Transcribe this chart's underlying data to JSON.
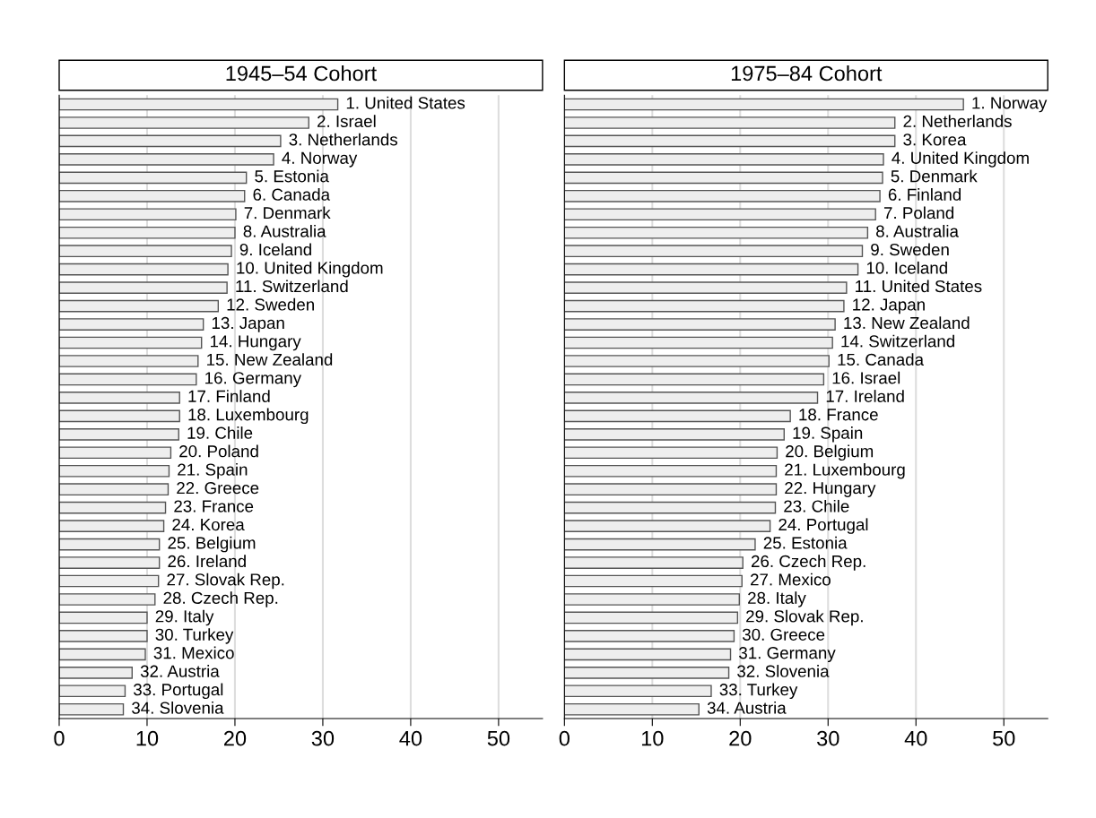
{
  "chart_data": [
    {
      "type": "bar",
      "orientation": "horizontal",
      "title": "1945–54 Cohort",
      "color": "#eeeeee",
      "xlim": [
        0,
        55
      ],
      "xticks": [
        0,
        10,
        20,
        30,
        40,
        50
      ],
      "grid": "x",
      "tick_labels": "x",
      "categories": [
        "1. United States",
        "2. Israel",
        "3. Netherlands",
        "4. Norway",
        "5. Estonia",
        "6. Canada",
        "7. Denmark",
        "8. Australia",
        "9. Iceland",
        "10. United Kingdom",
        "11. Switzerland",
        "12. Sweden",
        "13. Japan",
        "14. Hungary",
        "15. New Zealand",
        "16. Germany",
        "17. Finland",
        "18. Luxembourg",
        "19. Chile",
        "20. Poland",
        "21. Spain",
        "22. Greece",
        "23. France",
        "24. Korea",
        "25. Belgium",
        "26. Ireland",
        "27. Slovak Rep.",
        "28. Czech Rep.",
        "29. Italy",
        "30. Turkey",
        "31. Mexico",
        "32. Austria",
        "33. Portugal",
        "34. Slovenia"
      ],
      "values": [
        31.7,
        28.4,
        25.2,
        24.4,
        21.3,
        21.1,
        20.1,
        20.0,
        19.6,
        19.2,
        19.1,
        18.1,
        16.4,
        16.2,
        15.8,
        15.6,
        13.7,
        13.7,
        13.6,
        12.7,
        12.5,
        12.4,
        12.1,
        11.9,
        11.4,
        11.4,
        11.3,
        10.9,
        10.0,
        10.0,
        9.8,
        8.3,
        7.5,
        7.3
      ]
    },
    {
      "type": "bar",
      "orientation": "horizontal",
      "title": "1975–84 Cohort",
      "color": "#eeeeee",
      "xlim": [
        0,
        55
      ],
      "xticks": [
        0,
        10,
        20,
        30,
        40,
        50
      ],
      "grid": "x",
      "tick_labels": "x",
      "categories": [
        "1. Norway",
        "2. Netherlands",
        "3. Korea",
        "4. United Kingdom",
        "5. Denmark",
        "6. Finland",
        "7. Poland",
        "8. Australia",
        "9. Sweden",
        "10. Iceland",
        "11. United States",
        "12. Japan",
        "13. New Zealand",
        "14. Switzerland",
        "15. Canada",
        "16. Israel",
        "17. Ireland",
        "18. France",
        "19. Spain",
        "20. Belgium",
        "21. Luxembourg",
        "22. Hungary",
        "23. Chile",
        "24. Portugal",
        "25. Estonia",
        "26. Czech Rep.",
        "27. Mexico",
        "28. Italy",
        "29. Slovak Rep.",
        "30. Greece",
        "31. Germany",
        "32. Slovenia",
        "33. Turkey",
        "34. Austria"
      ],
      "values": [
        45.4,
        37.6,
        37.6,
        36.3,
        36.2,
        35.9,
        35.4,
        34.5,
        33.9,
        33.4,
        32.1,
        31.8,
        30.8,
        30.5,
        30.1,
        29.5,
        28.8,
        25.7,
        25.0,
        24.2,
        24.1,
        24.1,
        24.0,
        23.4,
        21.7,
        20.3,
        20.2,
        19.9,
        19.7,
        19.3,
        18.9,
        18.7,
        16.7,
        15.3
      ]
    }
  ]
}
